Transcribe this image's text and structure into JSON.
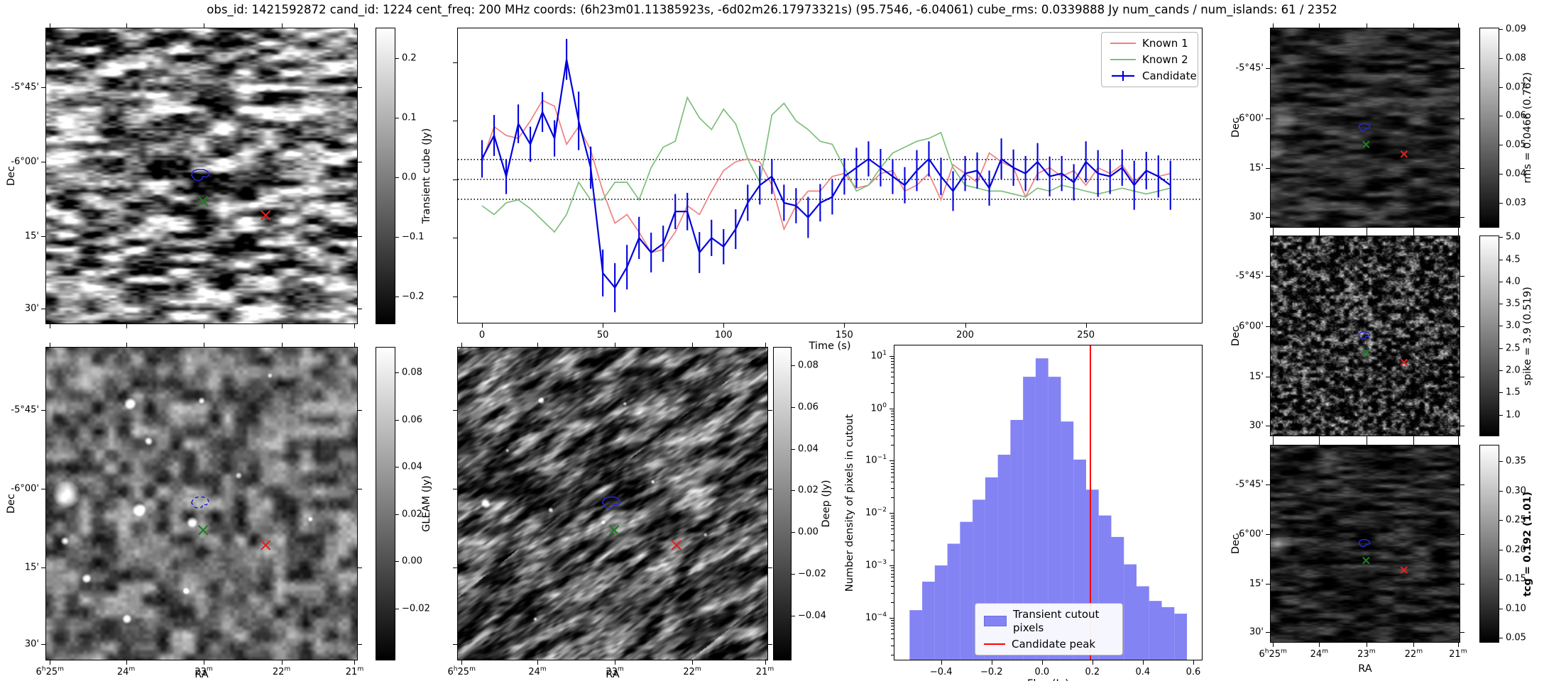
{
  "figure": {
    "title": "obs_id: 1421592872 cand_id: 1224 cent_freq: 200 MHz coords: (6h23m01.11385923s, -6d02m26.17973321s) (95.7546, -6.04061) cube_rms: 0.0339888 Jy num_cands / num_islands: 61 / 2352"
  },
  "colors": {
    "known1": "#f08080",
    "known2": "#7dbf7d",
    "candidate": "#0000dd",
    "hist_bar": "#8383f4",
    "hist_bar_edge": "#6b6bdf",
    "peak_line": "#ff0000",
    "contour": "#2626cc",
    "marker_green": "#1e7d1e",
    "marker_red": "#e02020"
  },
  "axis_labels": {
    "dec": "Dec",
    "ra": "RA"
  },
  "dec_ticks": [
    {
      "f": 0.2,
      "t": "-5°45'"
    },
    {
      "f": 0.452,
      "t": "-6°00'"
    },
    {
      "f": 0.704,
      "t": "15'"
    },
    {
      "f": 0.95,
      "t": "30'"
    }
  ],
  "ra_ticks": [
    {
      "f": 0.012,
      "t": "6h25m"
    },
    {
      "f": 0.257,
      "t": "24m"
    },
    {
      "f": 0.507,
      "t": "23m"
    },
    {
      "f": 0.757,
      "t": "22m"
    },
    {
      "f": 0.992,
      "t": "21m"
    }
  ],
  "colorbars": {
    "transient": {
      "label": "Transient cube (Jy)",
      "vmin": -0.245,
      "vmax": 0.25,
      "ticks": [
        [
          "0.2",
          0.2
        ],
        [
          "0.1",
          0.1
        ],
        [
          "0.0",
          0.0
        ],
        [
          "−0.1",
          -0.1
        ],
        [
          "−0.2",
          -0.2
        ]
      ]
    },
    "gleam": {
      "label": "GLEAM (Jy)",
      "vmin": -0.0417,
      "vmax": 0.0906,
      "ticks": [
        [
          "0.08",
          0.08
        ],
        [
          "0.06",
          0.06
        ],
        [
          "0.04",
          0.04
        ],
        [
          "0.02",
          0.02
        ],
        [
          "0.00",
          0.0
        ],
        [
          "−0.02",
          -0.02
        ]
      ]
    },
    "deep": {
      "label": "Deep (Jy)",
      "vmin": -0.0611,
      "vmax": 0.0885,
      "ticks": [
        [
          "0.08",
          0.08
        ],
        [
          "0.06",
          0.06
        ],
        [
          "0.04",
          0.04
        ],
        [
          "0.02",
          0.02
        ],
        [
          "0.00",
          0.0
        ],
        [
          "−0.02",
          -0.02
        ],
        [
          "−0.04",
          -0.04
        ]
      ]
    },
    "rms": {
      "label": "rms = 0.0466 (0.762)",
      "vmin": 0.0217,
      "vmax": 0.0902,
      "ticks": [
        [
          "0.09",
          0.09
        ],
        [
          "0.08",
          0.08
        ],
        [
          "0.07",
          0.07
        ],
        [
          "0.06",
          0.06
        ],
        [
          "0.05",
          0.05
        ],
        [
          "0.04",
          0.04
        ],
        [
          "0.03",
          0.03
        ]
      ]
    },
    "spike": {
      "label": "spike = 3.9 (0.519)",
      "vmin": 0.53,
      "vmax": 5.02,
      "ticks": [
        [
          "5.0",
          5.0
        ],
        [
          "4.5",
          4.5
        ],
        [
          "4.0",
          4.0
        ],
        [
          "3.5",
          3.5
        ],
        [
          "3.0",
          3.0
        ],
        [
          "2.5",
          2.5
        ],
        [
          "2.0",
          2.0
        ],
        [
          "1.5",
          1.5
        ],
        [
          "1.0",
          1.0
        ]
      ]
    },
    "tcg": {
      "label": "tcg = 0.192 (1.01)",
      "bold": true,
      "vmin": 0.043,
      "vmax": 0.377,
      "ticks": [
        [
          "0.35",
          0.35
        ],
        [
          "0.30",
          0.3
        ],
        [
          "0.25",
          0.25
        ],
        [
          "0.20",
          0.2
        ],
        [
          "0.15",
          0.15
        ],
        [
          "0.10",
          0.1
        ],
        [
          "0.05",
          0.05
        ]
      ]
    }
  },
  "chart_data": [
    {
      "type": "line",
      "title": "",
      "xlabel": "Time (s)",
      "ylabel": "",
      "xlim": [
        -10,
        298
      ],
      "ylim": [
        -0.245,
        0.258
      ],
      "xticks": [
        0,
        50,
        100,
        150,
        200,
        250
      ],
      "xtick_labels": [
        "0",
        "50",
        "100",
        "150",
        "200",
        "250"
      ],
      "yticks_unlabeled": [
        0.2,
        0.1,
        0.0,
        -0.1,
        -0.2
      ],
      "hlines_dotted": [
        0.034,
        0.0,
        -0.034
      ],
      "legend_position": "upper right",
      "grid": false,
      "x": [
        0,
        5,
        10,
        15,
        20,
        25,
        30,
        35,
        40,
        45,
        50,
        55,
        60,
        65,
        70,
        75,
        80,
        85,
        90,
        95,
        100,
        105,
        110,
        115,
        120,
        125,
        130,
        135,
        140,
        145,
        150,
        155,
        160,
        165,
        170,
        175,
        180,
        185,
        190,
        195,
        200,
        205,
        210,
        215,
        220,
        225,
        230,
        235,
        240,
        245,
        250,
        255,
        260,
        265,
        270,
        275,
        280,
        285
      ],
      "series": [
        {
          "name": "Known 1",
          "color_key": "known1",
          "y": [
            0.03,
            0.09,
            0.075,
            0.07,
            0.1,
            0.135,
            0.125,
            0.06,
            0.09,
            0.05,
            -0.02,
            -0.075,
            -0.06,
            -0.09,
            -0.125,
            -0.12,
            -0.09,
            -0.045,
            -0.06,
            -0.02,
            0.015,
            0.03,
            0.035,
            0.03,
            -0.01,
            -0.085,
            -0.045,
            -0.02,
            -0.02,
            0.005,
            0.01,
            -0.015,
            -0.01,
            0.01,
            0.015,
            -0.02,
            -0.01,
            0.01,
            -0.035,
            0.025,
            0.01,
            -0.005,
            0.045,
            0.03,
            0.02,
            -0.03,
            0.01,
            0.02,
            0.005,
            0.015,
            -0.01,
            0.02,
            0.01,
            0.025,
            -0.005,
            0.015,
            0.005,
            0.01
          ]
        },
        {
          "name": "Known 2",
          "color_key": "known2",
          "y": [
            -0.045,
            -0.06,
            -0.04,
            -0.035,
            -0.05,
            -0.07,
            -0.09,
            -0.06,
            -0.005,
            -0.035,
            -0.035,
            -0.005,
            -0.005,
            -0.035,
            0.02,
            0.055,
            0.065,
            0.14,
            0.105,
            0.085,
            0.12,
            0.095,
            0.035,
            -0.005,
            0.11,
            0.13,
            0.1,
            0.085,
            0.065,
            0.06,
            0.02,
            -0.02,
            -0.01,
            0.02,
            0.045,
            0.055,
            0.065,
            0.07,
            0.08,
            0.02,
            -0.01,
            -0.015,
            -0.02,
            -0.02,
            -0.025,
            -0.03,
            -0.015,
            -0.02,
            -0.01,
            -0.015,
            -0.02,
            -0.025,
            -0.02,
            -0.015,
            -0.02,
            -0.025,
            -0.02,
            -0.015
          ]
        },
        {
          "name": "Candidate",
          "color_key": "candidate",
          "has_errorbars": true,
          "y": [
            0.035,
            0.075,
            0.005,
            0.095,
            0.06,
            0.115,
            0.07,
            0.205,
            0.1,
            0.02,
            -0.16,
            -0.185,
            -0.15,
            -0.1,
            -0.125,
            -0.11,
            -0.055,
            -0.055,
            -0.125,
            -0.1,
            -0.115,
            -0.085,
            -0.04,
            -0.01,
            0.005,
            -0.04,
            -0.045,
            -0.065,
            -0.04,
            -0.03,
            0.005,
            0.02,
            0.035,
            0.02,
            0.005,
            -0.01,
            0.015,
            0.035,
            0.005,
            -0.02,
            0.01,
            0.015,
            -0.015,
            0.035,
            0.02,
            0.01,
            0.03,
            0.005,
            0.01,
            -0.005,
            0.03,
            0.01,
            0.005,
            0.02,
            -0.01,
            0.015,
            0.005,
            -0.01
          ],
          "yerr": [
            0.032,
            0.035,
            0.03,
            0.033,
            0.03,
            0.034,
            0.031,
            0.035,
            0.05,
            0.036,
            0.04,
            0.042,
            0.038,
            0.036,
            0.034,
            0.031,
            0.03,
            0.032,
            0.035,
            0.031,
            0.03,
            0.034,
            0.031,
            0.033,
            0.03,
            0.031,
            0.03,
            0.035,
            0.032,
            0.03,
            0.031,
            0.034,
            0.03,
            0.032,
            0.03,
            0.031,
            0.035,
            0.03,
            0.032,
            0.034,
            0.03,
            0.031,
            0.03,
            0.035,
            0.031,
            0.03,
            0.032,
            0.034,
            0.03,
            0.031,
            0.035,
            0.04,
            0.03,
            0.031,
            0.042,
            0.032,
            0.036,
            0.042
          ]
        }
      ]
    },
    {
      "type": "bar",
      "title": "",
      "xlabel": "Flux (Jy)",
      "ylabel": "Number density of pixels in cutout",
      "yscale": "log",
      "xlim": [
        -0.585,
        0.634
      ],
      "ylim_exp": [
        -4.8,
        1.2
      ],
      "xticks": [
        -0.4,
        -0.2,
        0.0,
        0.2,
        0.4,
        0.6
      ],
      "xtick_labels": [
        "−0.4",
        "−0.2",
        "0.0",
        "0.2",
        "0.4",
        "0.6"
      ],
      "ytick_exponents": [
        1,
        0,
        -1,
        -2,
        -3,
        -4
      ],
      "bin_width": 0.05,
      "bin_centers": [
        -0.5,
        -0.45,
        -0.4,
        -0.35,
        -0.3,
        -0.25,
        -0.2,
        -0.15,
        -0.1,
        -0.05,
        0.0,
        0.05,
        0.1,
        0.15,
        0.2,
        0.25,
        0.3,
        0.35,
        0.4,
        0.45,
        0.5,
        0.55
      ],
      "densities": [
        0.00014,
        0.00049,
        0.001,
        0.0026,
        0.0068,
        0.018,
        0.048,
        0.13,
        0.6,
        4.0,
        9.0,
        4.0,
        0.56,
        0.105,
        0.028,
        0.009,
        0.0035,
        0.00105,
        0.0004,
        0.00021,
        0.00016,
        0.00012
      ],
      "vline": {
        "x": 0.192
      },
      "legend": [
        "Transient cutout pixels",
        "Candidate peak"
      ],
      "legend_position": "lower center"
    }
  ]
}
